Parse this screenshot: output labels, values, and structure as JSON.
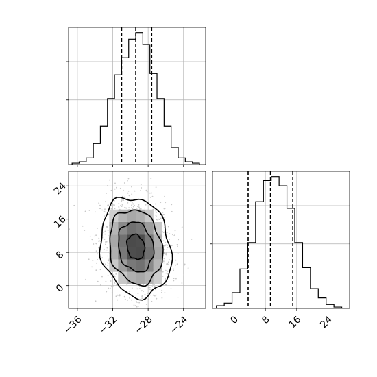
{
  "chart_data": [
    {
      "type": "histogram",
      "panel": "top-left",
      "variable": "x",
      "xlim": [
        -37,
        -21.5
      ],
      "ylim": [
        0,
        1.04
      ],
      "bin_edges": [
        -36.6,
        -35.8,
        -35.0,
        -34.2,
        -33.4,
        -32.6,
        -31.8,
        -31.0,
        -30.2,
        -29.4,
        -28.6,
        -27.8,
        -27.0,
        -26.2,
        -25.4,
        -24.6,
        -23.8,
        -23.0,
        -22.2
      ],
      "counts": [
        0.01,
        0.02,
        0.05,
        0.16,
        0.29,
        0.5,
        0.68,
        0.81,
        0.95,
        1.0,
        0.91,
        0.69,
        0.5,
        0.29,
        0.13,
        0.05,
        0.02,
        0.01
      ],
      "quantiles": [
        -31.0,
        -29.4,
        -27.6
      ],
      "grid": true,
      "xticks_visible": false,
      "yticks_visible": false
    },
    {
      "type": "histogram2d-contour",
      "panel": "bottom-left",
      "xvariable": "x",
      "yvariable": "y",
      "xlim": [
        -37,
        -21.5
      ],
      "ylim": [
        -5.5,
        27.5
      ],
      "xticks": [
        -36,
        -32,
        -28,
        -24
      ],
      "yticks": [
        0,
        8,
        16,
        24
      ],
      "xtick_labels": [
        "−36",
        "−32",
        "−28",
        "−24"
      ],
      "ytick_labels": [
        "0",
        "8",
        "16",
        "24"
      ],
      "mean": [
        -29.4,
        9.3
      ],
      "sigma": [
        2.0,
        6.0
      ],
      "correlation": -0.15,
      "grid": true
    },
    {
      "type": "histogram",
      "panel": "bottom-right",
      "variable": "y",
      "xlim": [
        -5.5,
        29.5
      ],
      "ylim": [
        0,
        1.04
      ],
      "bin_edges": [
        -4.5,
        -2.5,
        -0.5,
        1.5,
        3.5,
        5.5,
        7.5,
        9.5,
        11.5,
        13.5,
        15.5,
        17.5,
        19.5,
        21.5,
        23.5,
        25.5,
        27.5
      ],
      "counts": [
        0.02,
        0.04,
        0.12,
        0.3,
        0.5,
        0.81,
        0.97,
        1.0,
        0.93,
        0.76,
        0.5,
        0.31,
        0.15,
        0.08,
        0.03,
        0.01
      ],
      "quantiles": [
        3.6,
        9.3,
        15.0
      ],
      "xticks": [
        0,
        8,
        16,
        24
      ],
      "xtick_labels": [
        "0",
        "8",
        "16",
        "24"
      ],
      "grid": true,
      "yticks_visible": false
    }
  ],
  "colors": {
    "hist": "#000000",
    "grid": "#b0b0b0",
    "points": "#c8c8c8",
    "axes": "#000000"
  }
}
